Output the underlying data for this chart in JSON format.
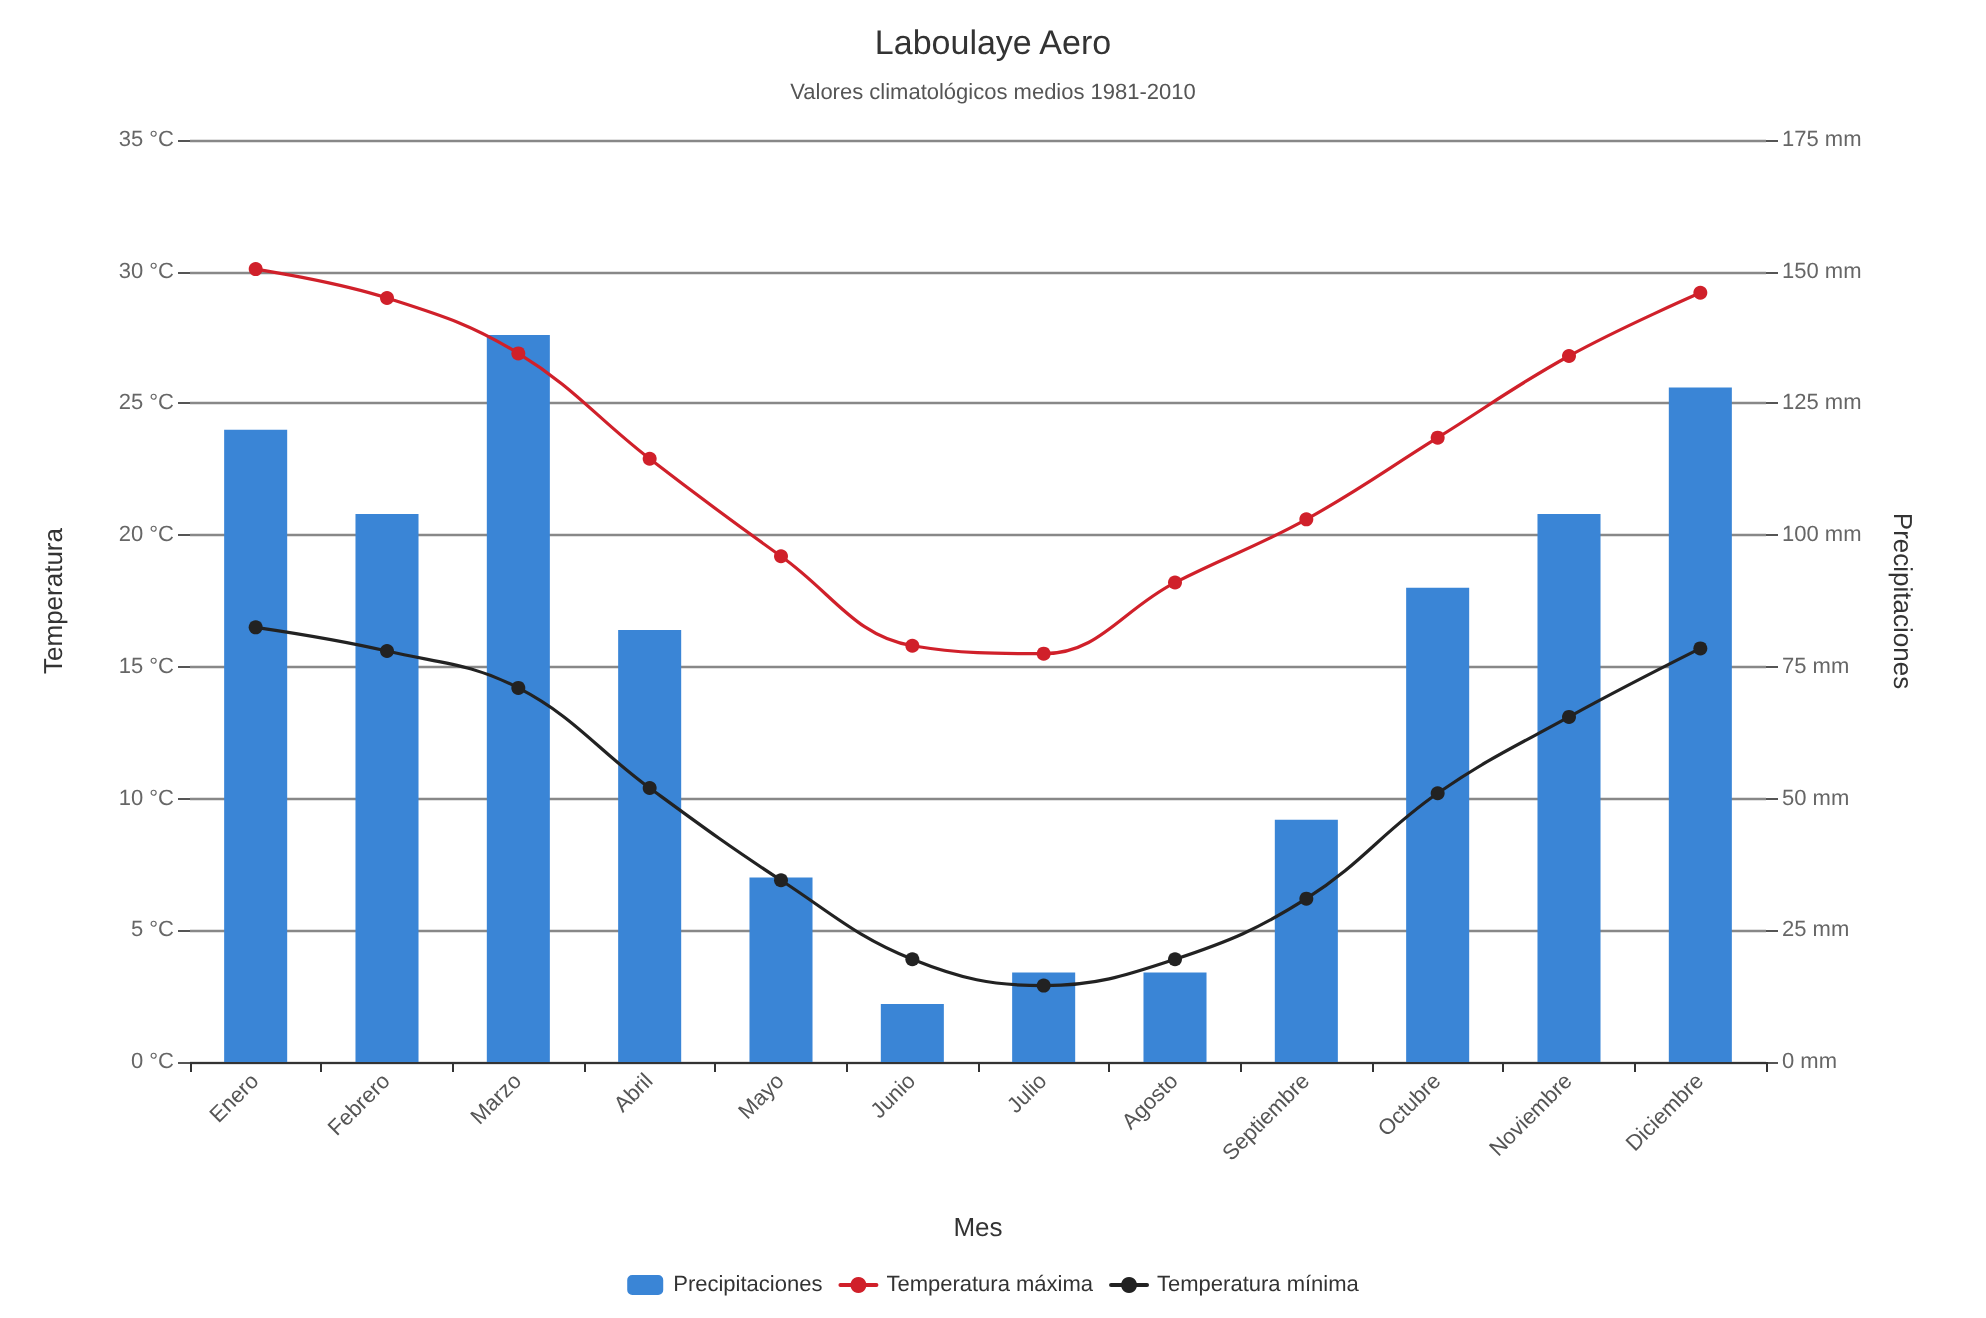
{
  "chart_data": {
    "type": "bar",
    "title": "Laboulaye Aero",
    "subtitle": "Valores climatológicos medios 1981-2010",
    "xlabel": "Mes",
    "ylabel": "Temperatura",
    "y2label": "Precipitaciones",
    "categories": [
      "Enero",
      "Febrero",
      "Marzo",
      "Abril",
      "Mayo",
      "Junio",
      "Julio",
      "Agosto",
      "Septiembre",
      "Octubre",
      "Noviembre",
      "Diciembre"
    ],
    "series": [
      {
        "name": "Precipitaciones",
        "axis": "y2",
        "color": "#3a85d6",
        "values": [
          120,
          104,
          138,
          82,
          35,
          11,
          17,
          17,
          46,
          90,
          104,
          128
        ]
      },
      {
        "name": "Temperatura máxima",
        "type": "line",
        "color": "#d0202a",
        "values": [
          30.1,
          29.0,
          26.9,
          22.9,
          19.2,
          15.8,
          15.5,
          18.2,
          20.6,
          23.7,
          26.8,
          29.2
        ]
      },
      {
        "name": "Temperatura mínima",
        "type": "line",
        "color": "#222222",
        "values": [
          16.5,
          15.6,
          14.2,
          10.4,
          6.9,
          3.9,
          2.9,
          3.9,
          6.2,
          10.2,
          13.1,
          15.7
        ]
      }
    ],
    "ylim": [
      0,
      35
    ],
    "yticks": [
      {
        "value": 0,
        "label": "0 °C"
      },
      {
        "value": 5,
        "label": "5 °C"
      },
      {
        "value": 10,
        "label": "10 °C"
      },
      {
        "value": 15,
        "label": "15 °C"
      },
      {
        "value": 20,
        "label": "20 °C"
      },
      {
        "value": 25,
        "label": "25 °C"
      },
      {
        "value": 30,
        "label": "30 °C"
      },
      {
        "value": 35,
        "label": "35 °C"
      }
    ],
    "y2lim": [
      0,
      175
    ],
    "y2ticks": [
      {
        "value": 0,
        "label": "0 mm"
      },
      {
        "value": 25,
        "label": "25 mm"
      },
      {
        "value": 50,
        "label": "50 mm"
      },
      {
        "value": 75,
        "label": "75 mm"
      },
      {
        "value": 100,
        "label": "100 mm"
      },
      {
        "value": 125,
        "label": "125 mm"
      },
      {
        "value": 150,
        "label": "150 mm"
      },
      {
        "value": 175,
        "label": "175 mm"
      }
    ],
    "grid": "y",
    "legend": "bottom",
    "marker": "circle",
    "line_style": "solid"
  }
}
